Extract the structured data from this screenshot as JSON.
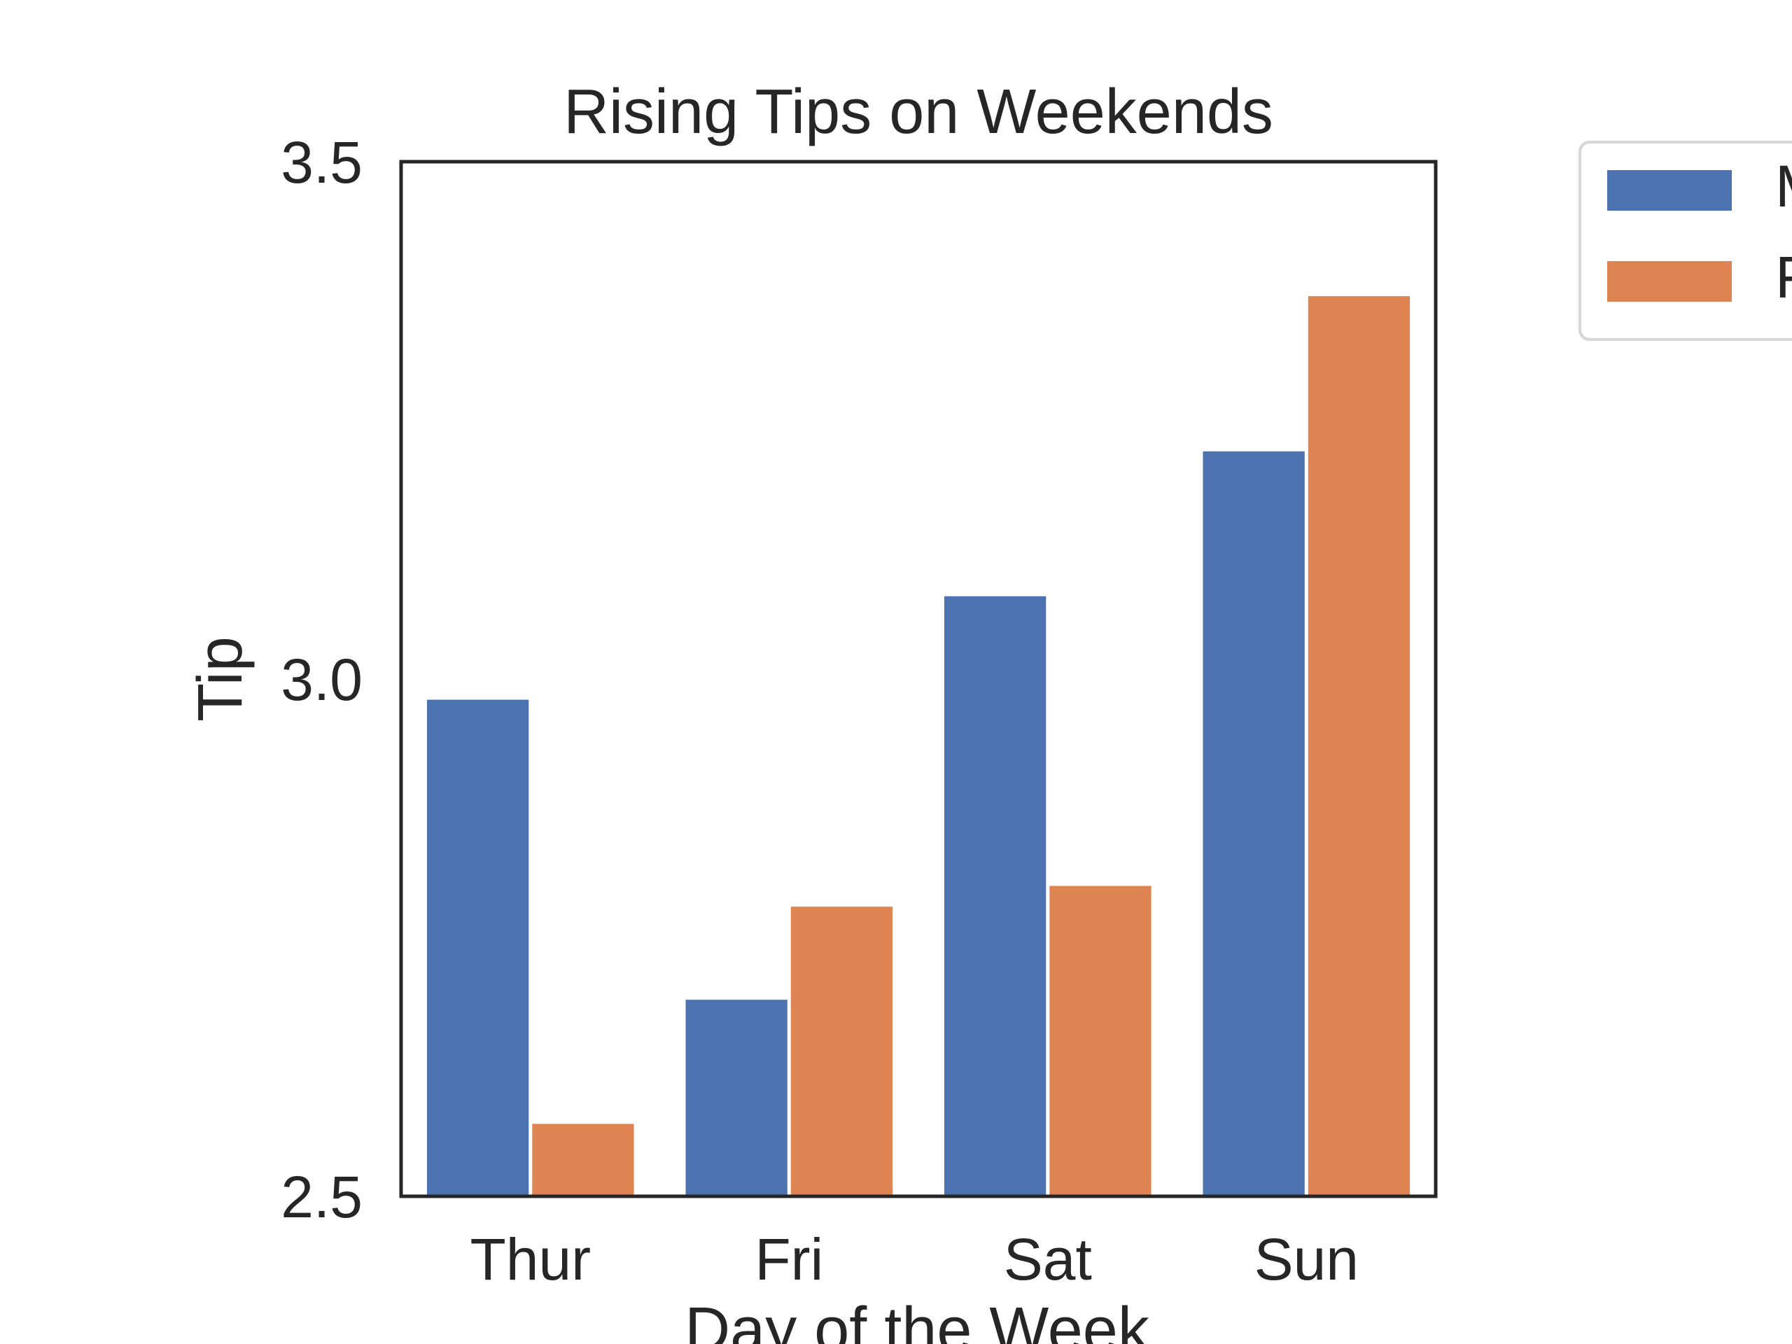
{
  "chart_data": {
    "type": "bar",
    "title": "Rising Tips on Weekends",
    "xlabel": "Day of the Week",
    "ylabel": "Tip",
    "ylim": [
      2.5,
      3.5
    ],
    "yticks": [
      "2.5",
      "3.0",
      "3.5"
    ],
    "categories": [
      "Thur",
      "Fri",
      "Sat",
      "Sun"
    ],
    "series": [
      {
        "name": "Male",
        "color": "#4c72b0",
        "values": [
          2.98,
          2.69,
          3.08,
          3.22
        ]
      },
      {
        "name": "Female",
        "color": "#dd8452",
        "values": [
          2.57,
          2.78,
          2.8,
          3.37
        ]
      }
    ],
    "legend_position": "outside-top-right"
  }
}
